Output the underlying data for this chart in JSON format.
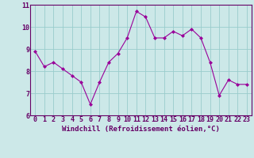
{
  "xlabel": "Windchill (Refroidissement éolien,°C)",
  "x_values": [
    0,
    1,
    2,
    3,
    4,
    5,
    6,
    7,
    8,
    9,
    10,
    11,
    12,
    13,
    14,
    15,
    16,
    17,
    18,
    19,
    20,
    21,
    22,
    23
  ],
  "y_values": [
    8.9,
    8.2,
    8.4,
    8.1,
    7.8,
    7.5,
    6.5,
    7.5,
    8.4,
    8.8,
    9.5,
    10.7,
    10.45,
    9.5,
    9.5,
    9.8,
    9.6,
    9.9,
    9.5,
    8.4,
    6.9,
    7.6,
    7.4,
    7.4
  ],
  "line_color": "#990099",
  "marker_color": "#990099",
  "bg_color": "#cce8e8",
  "grid_color": "#99cccc",
  "border_color": "#660066",
  "ylim": [
    6,
    11
  ],
  "xlim": [
    -0.5,
    23.5
  ],
  "yticks": [
    6,
    7,
    8,
    9,
    10,
    11
  ],
  "xticks": [
    0,
    1,
    2,
    3,
    4,
    5,
    6,
    7,
    8,
    9,
    10,
    11,
    12,
    13,
    14,
    15,
    16,
    17,
    18,
    19,
    20,
    21,
    22,
    23
  ],
  "tick_color": "#660066",
  "label_fontsize": 6.5,
  "tick_fontsize": 6
}
